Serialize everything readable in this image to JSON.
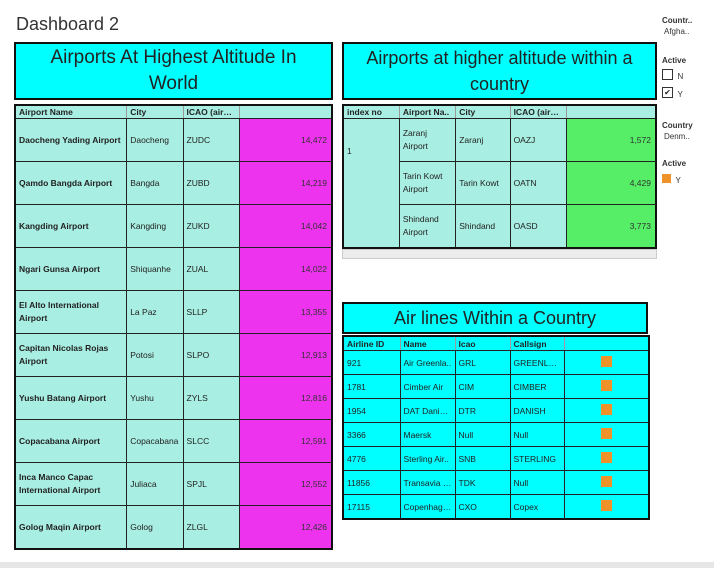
{
  "dashboard_title": "Dashboard 2",
  "highest": {
    "title_line1": "Airports At Highest Altitude In",
    "title_line2": "World",
    "headers": [
      "Airport Name",
      "City",
      "ICAO (airpo..",
      ""
    ],
    "rows": [
      {
        "name": "Daocheng Yading Airport",
        "city": "Daocheng",
        "icao": "ZUDC",
        "value": "14,472"
      },
      {
        "name": "Qamdo Bangda Airport",
        "city": "Bangda",
        "icao": "ZUBD",
        "value": "14,219"
      },
      {
        "name": "Kangding Airport",
        "city": "Kangding",
        "icao": "ZUKD",
        "value": "14,042"
      },
      {
        "name": "Ngari Gunsa Airport",
        "city": "Shiquanhe",
        "icao": "ZUAL",
        "value": "14,022"
      },
      {
        "name": "El Alto International Airport",
        "city": "La Paz",
        "icao": "SLLP",
        "value": "13,355"
      },
      {
        "name": "Capitan Nicolas Rojas Airport",
        "city": "Potosi",
        "icao": "SLPO",
        "value": "12,913"
      },
      {
        "name": "Yushu Batang Airport",
        "city": "Yushu",
        "icao": "ZYLS",
        "value": "12,816"
      },
      {
        "name": "Copacabana Airport",
        "city": "Copacabana",
        "icao": "SLCC",
        "value": "12,591"
      },
      {
        "name": "Inca Manco Capac International Airport",
        "city": "Juliaca",
        "icao": "SPJL",
        "value": "12,552"
      },
      {
        "name": "Golog Maqin Airport",
        "city": "Golog",
        "icao": "ZLGL",
        "value": "12,426"
      }
    ]
  },
  "within_country": {
    "title_line1": "Airports at higher altitude within a",
    "title_line2": "country",
    "headers": [
      "index no",
      "Airport Na..",
      "City",
      "ICAO (airpo..",
      ""
    ],
    "index": "1",
    "rows": [
      {
        "name": "Zaranj Airport",
        "city": "Zaranj",
        "icao": "OAZJ",
        "value": "1,572"
      },
      {
        "name": "Tarin Kowt Airport",
        "city": "Tarin Kowt",
        "icao": "OATN",
        "value": "4,429"
      },
      {
        "name": "Shindand Airport",
        "city": "Shindand",
        "icao": "OASD",
        "value": "3,773"
      }
    ]
  },
  "airlines": {
    "title": "Air lines Within a Country",
    "headers": [
      "Airline ID",
      "Name",
      "Icao",
      "Callsign",
      ""
    ],
    "rows": [
      {
        "id": "921",
        "name": "Air Greenla..",
        "icao": "GRL",
        "callsign": "GREENLAND"
      },
      {
        "id": "1781",
        "name": "Cimber Air",
        "icao": "CIM",
        "callsign": "CIMBER"
      },
      {
        "id": "1954",
        "name": "DAT Danish ..",
        "icao": "DTR",
        "callsign": "DANISH"
      },
      {
        "id": "3366",
        "name": "Maersk",
        "icao": "Null",
        "callsign": "Null"
      },
      {
        "id": "4776",
        "name": "Sterling Air..",
        "icao": "SNB",
        "callsign": "STERLING"
      },
      {
        "id": "11856",
        "name": "Transavia D..",
        "icao": "TDK",
        "callsign": "Null"
      },
      {
        "id": "17115",
        "name": "Copenhage..",
        "icao": "CXO",
        "callsign": "Copex"
      }
    ]
  },
  "filters": {
    "country1": {
      "label": "Countr..",
      "value": "Afgha.."
    },
    "active1": {
      "label": "Active",
      "options": [
        {
          "label": "N",
          "checked": false
        },
        {
          "label": "Y",
          "checked": true
        }
      ]
    },
    "country2": {
      "label": "Country",
      "value": "Denm.."
    },
    "active2": {
      "label": "Active",
      "legend_item": "Y"
    }
  },
  "colors": {
    "banner": "#00ffff",
    "table_bg": "#a8eee2",
    "magenta": "#ee33ee",
    "green": "#55ee66",
    "orange": "#f0922a"
  },
  "icons": {
    "checked": "check-icon",
    "legend": "orange-square-icon"
  }
}
